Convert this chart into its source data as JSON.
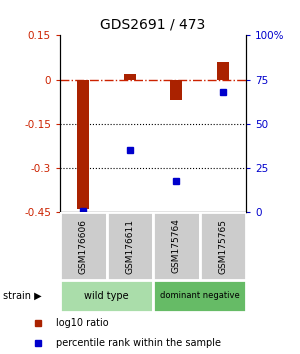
{
  "title": "GDS2691 / 473",
  "samples": [
    "GSM176606",
    "GSM176611",
    "GSM175764",
    "GSM175765"
  ],
  "log10_ratio": [
    -0.44,
    0.02,
    -0.07,
    0.06
  ],
  "percentile_rank": [
    1,
    35,
    18,
    68
  ],
  "ylim_left": [
    -0.45,
    0.15
  ],
  "ylim_right": [
    0,
    100
  ],
  "yticks_left": [
    0.15,
    0.0,
    -0.15,
    -0.3,
    -0.45
  ],
  "yticks_left_labels": [
    "0.15",
    "0",
    "-0.15",
    "-0.3",
    "-0.45"
  ],
  "yticks_right": [
    100,
    75,
    50,
    25,
    0
  ],
  "yticks_right_labels": [
    "100%",
    "75",
    "50",
    "25",
    "0"
  ],
  "bar_color": "#aa2200",
  "dot_color": "#0000cc",
  "bar_width": 0.25,
  "strain_groups": [
    {
      "label": "wild type",
      "samples": [
        0,
        1
      ],
      "color": "#aaddaa"
    },
    {
      "label": "dominant negative",
      "samples": [
        2,
        3
      ],
      "color": "#66bb66"
    }
  ],
  "legend_items": [
    {
      "color": "#aa2200",
      "label": "log10 ratio"
    },
    {
      "color": "#0000cc",
      "label": "percentile rank within the sample"
    }
  ],
  "background_color": "#ffffff"
}
